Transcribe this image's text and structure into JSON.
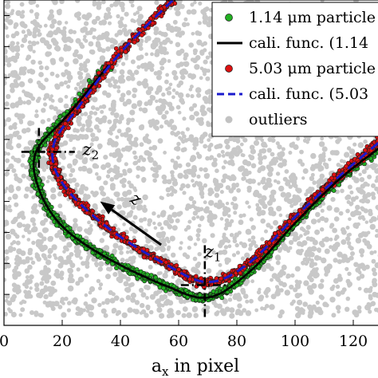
{
  "chart_data": {
    "type": "scatter",
    "xlabel_main": "a",
    "xlabel_sub": "x",
    "xlabel_rest": " in pixel",
    "ylabel": "",
    "xlim": [
      0,
      130
    ],
    "ylim": [
      0,
      105
    ],
    "x_ticks": [
      0,
      20,
      40,
      60,
      80,
      100,
      120
    ],
    "x_tick_labels": [
      "0",
      "20",
      "40",
      "60",
      "80",
      "100",
      "120"
    ],
    "grid": false,
    "legend_position": "top-right",
    "legend": [
      {
        "label": "1.14 μm particle",
        "kind": "marker",
        "color": "#22b022"
      },
      {
        "label": "cali. func. (1.14",
        "kind": "solid-line",
        "color": "#000000"
      },
      {
        "label": "5.03 μm particle",
        "kind": "marker",
        "color": "#dd1111"
      },
      {
        "label": "cali. func. (5.03",
        "kind": "dashed-line",
        "color": "#1a1acc"
      },
      {
        "label": "outliers",
        "kind": "marker",
        "color": "#c2c2c2"
      }
    ],
    "colors": {
      "outliers": "#c8c8c8",
      "green": "#22b022",
      "red": "#dd1111",
      "black_line": "#000000",
      "blue_line": "#1a1acc"
    },
    "series": [
      {
        "name": "1.14 μm particle",
        "curve": [
          [
            36,
            84
          ],
          [
            22,
            68
          ],
          [
            11,
            56
          ],
          [
            12,
            44
          ],
          [
            20,
            32
          ],
          [
            35,
            22
          ],
          [
            55,
            13
          ],
          [
            70,
            9
          ],
          [
            84,
            17
          ],
          [
            100,
            33
          ],
          [
            115,
            47
          ],
          [
            130,
            58
          ]
        ]
      },
      {
        "name": "5.03 μm particle",
        "curve": [
          [
            58,
            105
          ],
          [
            40,
            88
          ],
          [
            26,
            71
          ],
          [
            17,
            58
          ],
          [
            20,
            46
          ],
          [
            35,
            32
          ],
          [
            55,
            20
          ],
          [
            70,
            14
          ],
          [
            84,
            20
          ],
          [
            100,
            35
          ],
          [
            115,
            48
          ],
          [
            130,
            60
          ]
        ]
      }
    ],
    "outlier_region": {
      "x": [
        0,
        130
      ],
      "y": [
        3,
        105
      ]
    },
    "annotations": [
      {
        "text": "z",
        "sub": "1",
        "x": 69,
        "y": 22
      },
      {
        "text": "z",
        "sub": "2",
        "x": 27,
        "y": 55
      },
      {
        "text": "z",
        "sub": "",
        "x": 43,
        "y": 40
      }
    ],
    "markers": [
      {
        "name": "z1",
        "x": 69,
        "y": 13,
        "style": "dash-dot crosshair"
      },
      {
        "name": "z2",
        "x": 12,
        "y": 56,
        "style": "dash-dot crosshair"
      }
    ],
    "arrow": {
      "from": [
        54,
        26
      ],
      "to": [
        33,
        40
      ]
    }
  }
}
